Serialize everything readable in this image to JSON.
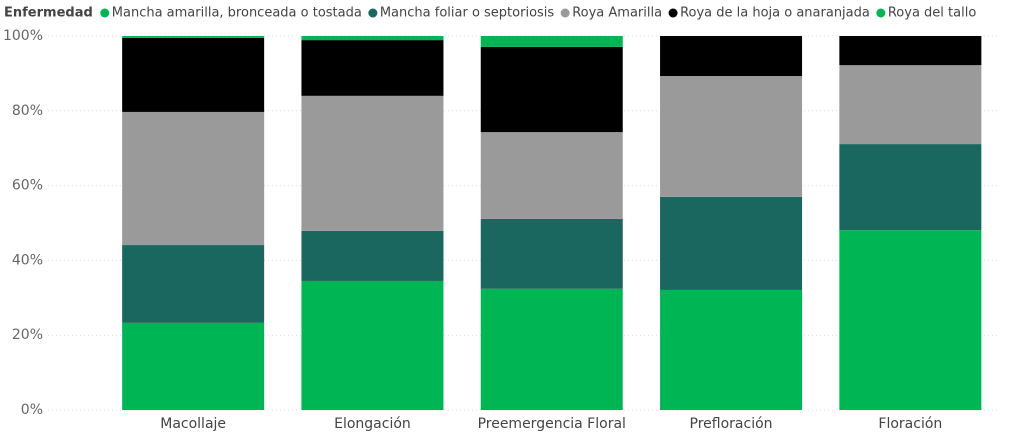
{
  "chart_data": {
    "type": "stacked_bar_100",
    "legend_title": "Enfermedad",
    "categories": [
      "Macollaje",
      "Elongación",
      "Preemergencia Floral",
      "Prefloración",
      "Floración"
    ],
    "series": [
      {
        "name": "Mancha amarilla, bronceada o tostada",
        "color": "#00b554",
        "values": [
          23.3,
          34.5,
          32.4,
          32.1,
          48.1
        ]
      },
      {
        "name": "Mancha foliar o septoriosis",
        "color": "#19675e",
        "values": [
          20.8,
          13.4,
          18.7,
          24.9,
          23.0
        ]
      },
      {
        "name": "Roya Amarilla",
        "color": "#9a9a9a",
        "values": [
          35.6,
          36.1,
          23.2,
          32.3,
          21.1
        ]
      },
      {
        "name": "Roya de la hoja o anaranjada",
        "color": "#000000",
        "values": [
          19.8,
          14.9,
          22.8,
          10.7,
          7.8
        ]
      },
      {
        "name": "Roya del tallo",
        "color": "#00b554",
        "values": [
          0.5,
          1.1,
          2.9,
          0,
          0
        ]
      }
    ],
    "ylim": [
      0,
      100
    ],
    "yticks": [
      {
        "value": 0,
        "label": "0%"
      },
      {
        "value": 20,
        "label": "20%"
      },
      {
        "value": 40,
        "label": "40%"
      },
      {
        "value": 60,
        "label": "60%"
      },
      {
        "value": 80,
        "label": "80%"
      },
      {
        "value": 100,
        "label": "100%"
      }
    ],
    "grid": true
  }
}
